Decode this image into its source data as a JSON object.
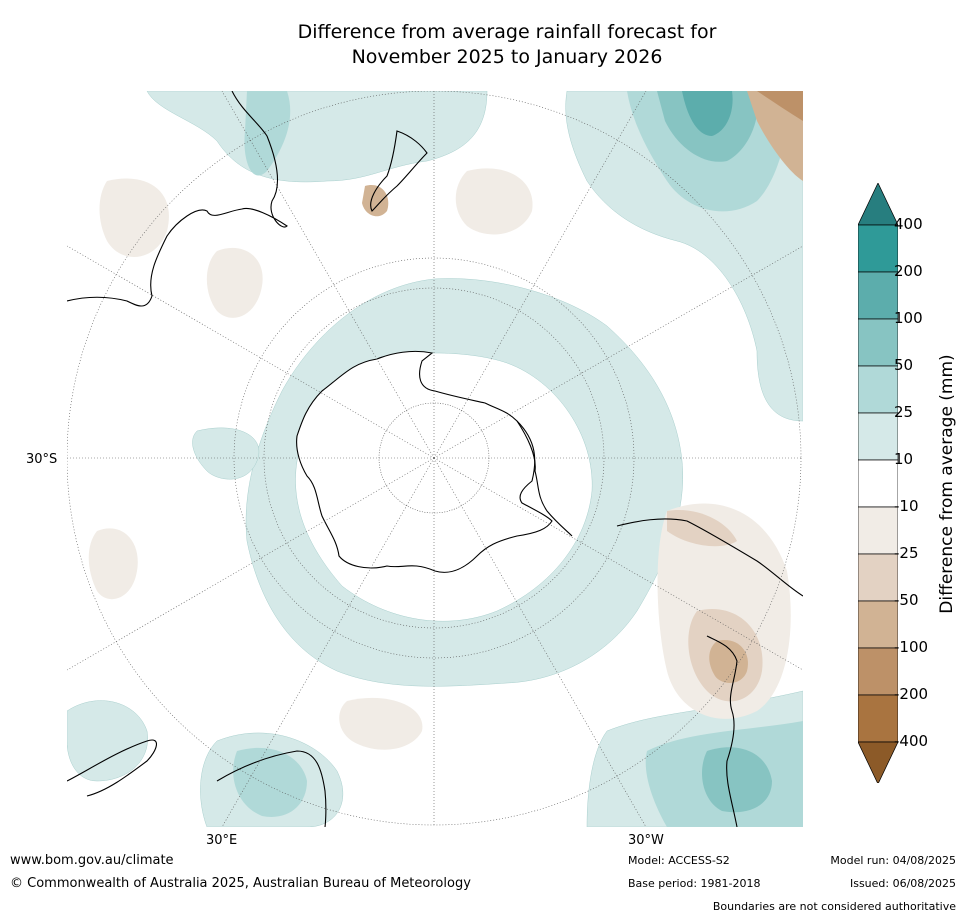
{
  "title": {
    "line1": "Difference from average rainfall forecast for",
    "line2": "November 2025 to January 2026"
  },
  "map": {
    "projection": "south-polar-stereographic",
    "latitude_labels": [
      "30°S"
    ],
    "longitude_labels": [
      "30°E",
      "30°W"
    ]
  },
  "colorbar": {
    "label": "Difference from average (mm)",
    "ticks": [
      "400",
      "200",
      "100",
      "50",
      "25",
      "10",
      "-10",
      "-25",
      "-50",
      "-100",
      "-200",
      "-400"
    ],
    "colors": [
      "#277e7f",
      "#2f9a98",
      "#5cadac",
      "#87c4c2",
      "#b0d9d8",
      "#d5e9e8",
      "#ffffff",
      "#f1ece6",
      "#e3d2c3",
      "#d1b394",
      "#bd9168",
      "#a97440",
      "#8c5a28"
    ]
  },
  "footer": {
    "url": "www.bom.gov.au/climate",
    "copyright": "© Commonwealth of Australia 2025, Australian Bureau of Meteorology",
    "model": "Model: ACCESS-S2",
    "base_period": "Base period: 1981-2018",
    "model_run": "Model run: 04/08/2025",
    "issued": "Issued: 06/08/2025",
    "disclaimer": "Boundaries are not considered authoritative"
  }
}
